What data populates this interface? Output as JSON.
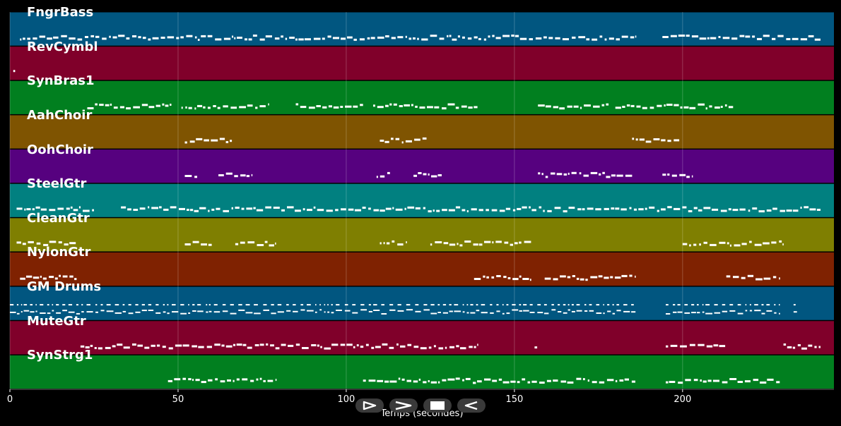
{
  "chart_data": {
    "type": "timeline",
    "xlabel": "Temps (secondes)",
    "xlim": [
      0,
      245
    ],
    "xticks": [
      0,
      50,
      100,
      150,
      200
    ],
    "grid": true,
    "tracks": [
      {
        "name": "FngrBass",
        "color": "#015680",
        "segments": [
          [
            3,
            186
          ],
          [
            194,
            241
          ]
        ]
      },
      {
        "name": "RevCymbl",
        "color": "#80002a",
        "segments": [
          [
            1,
            2
          ]
        ]
      },
      {
        "name": "SynBras1",
        "color": "#017f1f",
        "segments": [
          [
            23,
            48
          ],
          [
            51,
            77
          ],
          [
            85,
            105
          ],
          [
            108,
            139
          ],
          [
            157,
            178
          ],
          [
            180,
            215
          ]
        ]
      },
      {
        "name": "AahChoir",
        "color": "#7f5401",
        "segments": [
          [
            52,
            66
          ],
          [
            110,
            124
          ],
          [
            185,
            199
          ]
        ]
      },
      {
        "name": "OohChoir",
        "color": "#56017f",
        "segments": [
          [
            52,
            56
          ],
          [
            62,
            72
          ],
          [
            109,
            113
          ],
          [
            120,
            129
          ],
          [
            157,
            185
          ],
          [
            194,
            203
          ]
        ]
      },
      {
        "name": "SteelGtr",
        "color": "#018080",
        "segments": [
          [
            2,
            25
          ],
          [
            33,
            241
          ]
        ]
      },
      {
        "name": "CleanGtr",
        "color": "#7f7f01",
        "segments": [
          [
            2,
            20
          ],
          [
            52,
            60
          ],
          [
            67,
            79
          ],
          [
            110,
            118
          ],
          [
            125,
            155
          ],
          [
            200,
            230
          ]
        ]
      },
      {
        "name": "NylonGtr",
        "color": "#7f2201",
        "segments": [
          [
            3,
            20
          ],
          [
            138,
            155
          ],
          [
            159,
            186
          ],
          [
            213,
            229
          ]
        ]
      },
      {
        "name": "GM Drums",
        "color": "#015680",
        "segments": [
          [
            0,
            186
          ],
          [
            195,
            229
          ],
          [
            233,
            234
          ]
        ]
      },
      {
        "name": "MuteGtr",
        "color": "#80002a",
        "segments": [
          [
            21,
            139
          ],
          [
            156,
            157
          ],
          [
            195,
            213
          ],
          [
            230,
            241
          ]
        ]
      },
      {
        "name": "SynStrg1",
        "color": "#017f1f",
        "segments": [
          [
            47,
            79
          ],
          [
            105,
            186
          ],
          [
            195,
            229
          ]
        ]
      }
    ]
  },
  "controls": [
    {
      "name": "play-button",
      "icon": "play-icon"
    },
    {
      "name": "forward-button",
      "icon": "chevron-right-icon"
    },
    {
      "name": "stop-button",
      "icon": "stop-icon"
    },
    {
      "name": "rewind-button",
      "icon": "rewind-icon"
    }
  ]
}
